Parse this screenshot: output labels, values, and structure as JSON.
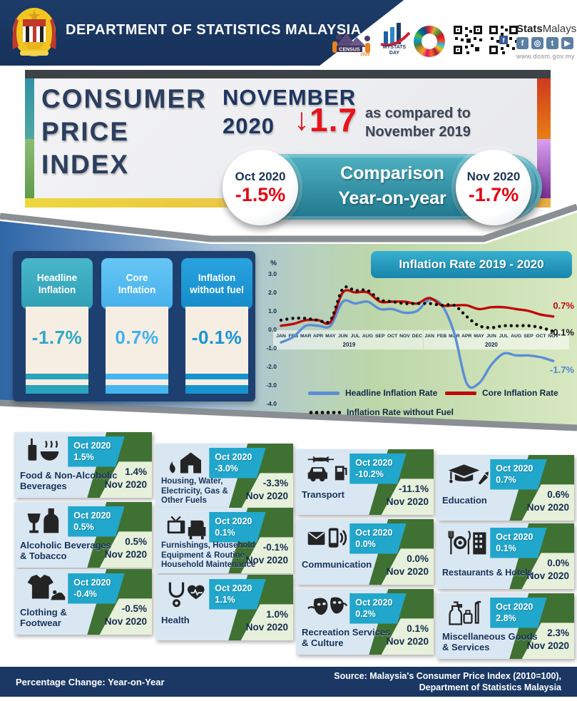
{
  "header": {
    "department": "DEPARTMENT OF STATISTICS MALAYSIA",
    "brand_bold": "Stats",
    "brand_light": "Malaysia",
    "website": "www.dosm.gov.my",
    "logos": {
      "census": "CENSUS",
      "census_year": "2020",
      "mystats": "MYSTATS",
      "mystats_day": "DAY"
    },
    "social_icons": [
      "facebook",
      "instagram",
      "twitter",
      "youtube"
    ]
  },
  "title": {
    "main": "CONSUMER\nPRICE\nINDEX",
    "month_year": "NOVEMBER\n2020",
    "arrow": "↓",
    "change": "1.7",
    "compare": "as compared to\nNovember 2019"
  },
  "comparison": {
    "label": "Comparison\nYear-on-year",
    "left_period": "Oct 2020",
    "left_value": "-1.5%",
    "right_period": "Nov 2020",
    "right_value": "-1.7%"
  },
  "indicators": [
    {
      "label": "Headline\nInflation",
      "value": "-1.7%",
      "header_color": "#35adc3",
      "value_color": "#2fa9c4"
    },
    {
      "label": "Core\nInflation",
      "value": "0.7%",
      "header_color": "#54bdf1",
      "value_color": "#3fb1f0"
    },
    {
      "label": "Inflation\nwithout fuel",
      "value": "-0.1%",
      "header_color": "#1895d3",
      "value_color": "#1894d6"
    }
  ],
  "chart_data": {
    "type": "line",
    "title": "Inflation Rate 2019 - 2020",
    "ylabel": "%",
    "ylim": [
      -4.0,
      3.0
    ],
    "yticks": [
      "3.0",
      "2.0",
      "1.0",
      "0.0",
      "-1.0",
      "-2.0",
      "-3.0",
      "-4.0"
    ],
    "months": [
      "JAN",
      "FEB",
      "MAR",
      "APR",
      "MAY",
      "JUN",
      "JUL",
      "AUG",
      "SEP",
      "OCT",
      "NOV",
      "DEC",
      "JAN",
      "FEB",
      "MAR",
      "APR",
      "MAY",
      "JUN",
      "JUL",
      "AUG",
      "SEP",
      "OCT",
      "NOV"
    ],
    "year_labels": [
      "2019",
      "2020"
    ],
    "legend_position": "bottom",
    "series": [
      {
        "name": "Headline Inflation Rate",
        "color": "#5b8ed6",
        "style": "solid",
        "values": [
          -0.7,
          -0.4,
          0.2,
          0.2,
          0.2,
          1.5,
          1.4,
          1.5,
          1.1,
          1.1,
          0.9,
          1.0,
          1.6,
          1.3,
          -0.2,
          -2.9,
          -2.9,
          -1.9,
          -1.3,
          -1.4,
          -1.4,
          -1.5,
          -1.7
        ],
        "end_label": "-1.7%",
        "end_label_color": "#4f86d2"
      },
      {
        "name": "Core Inflation Rate",
        "color": "#c00a0a",
        "style": "solid",
        "values": [
          0.2,
          0.3,
          0.5,
          0.5,
          0.4,
          2.0,
          2.0,
          2.0,
          1.5,
          1.5,
          1.5,
          1.4,
          1.7,
          1.3,
          1.3,
          1.3,
          1.1,
          1.2,
          1.2,
          1.1,
          1.0,
          0.8,
          0.7
        ],
        "end_label": "0.7%",
        "end_label_color": "#c00a0a"
      },
      {
        "name": "Inflation Rate without Fuel",
        "color": "#111111",
        "style": "dotted",
        "values": [
          0.5,
          0.6,
          0.6,
          0.5,
          0.5,
          2.2,
          2.1,
          2.1,
          1.6,
          1.5,
          1.4,
          1.4,
          1.4,
          1.3,
          1.3,
          0.7,
          0.2,
          0.1,
          0.2,
          0.2,
          0.2,
          0.1,
          -0.1
        ],
        "end_label": "-0.1%",
        "end_label_color": "#1a1a1a"
      }
    ]
  },
  "cards": {
    "oct_label": "Oct 2020",
    "nov_label": "Nov 2020"
  },
  "categories": [
    {
      "name": "Food & Non-Alcoholic\nBeverages",
      "oct": "1.5%",
      "nov": "1.4%"
    },
    {
      "name": "Housing, Water,\nElectricity, Gas &\nOther Fuels",
      "oct": "-3.0%",
      "nov": "-3.3%"
    },
    {
      "name": "Transport",
      "oct": "-10.2%",
      "nov": "-11.1%"
    },
    {
      "name": "Education",
      "oct": "0.7%",
      "nov": "0.6%"
    },
    {
      "name": "Alcoholic Beverages\n& Tobacco",
      "oct": "0.5%",
      "nov": "0.5%"
    },
    {
      "name": "Furnishings, Household\nEquipment & Routine\nHousehold Maintenance",
      "oct": "0.1%",
      "nov": "-0.1%"
    },
    {
      "name": "Communication",
      "oct": "0.0%",
      "nov": "0.0%"
    },
    {
      "name": "Restaurants & Hotels",
      "oct": "0.1%",
      "nov": "0.0%"
    },
    {
      "name": "Clothing &\nFootwear",
      "oct": "-0.4%",
      "nov": "-0.5%"
    },
    {
      "name": "Health",
      "oct": "1.1%",
      "nov": "1.0%"
    },
    {
      "name": "Recreation Services\n& Culture",
      "oct": "0.2%",
      "nov": "0.1%"
    },
    {
      "name": "Miscellaneous Goods\n& Services",
      "oct": "2.8%",
      "nov": "2.3%"
    }
  ],
  "footer": {
    "left": "Percentage Change: Year-on-Year",
    "source": "Source: Malaysia's Consumer Price Index (2010=100),\nDepartment of  Statistics Malaysia"
  }
}
